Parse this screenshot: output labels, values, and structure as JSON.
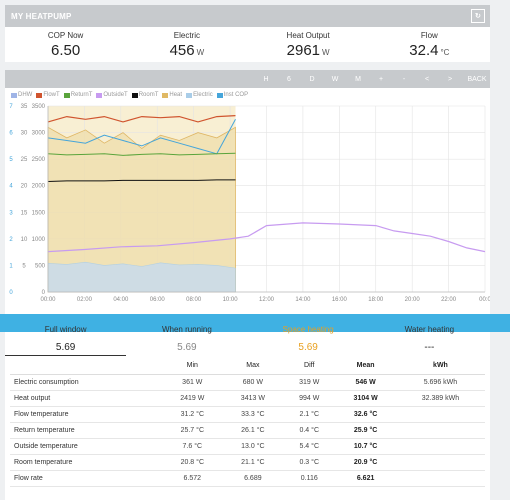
{
  "header": {
    "title": "MY HEATPUMP",
    "refresh_icon": "refresh-icon"
  },
  "stats": [
    {
      "label": "COP Now",
      "value": "6.50",
      "unit": ""
    },
    {
      "label": "Electric",
      "value": "456",
      "unit": "W"
    },
    {
      "label": "Heat Output",
      "value": "2961",
      "unit": "W"
    },
    {
      "label": "Flow",
      "value": "32.4",
      "unit": "°C"
    }
  ],
  "toolbar": [
    "H",
    "6",
    "D",
    "W",
    "M",
    "+",
    "-",
    "<",
    ">",
    "BACK"
  ],
  "legend": [
    {
      "name": "DHW",
      "color": "#9fb4e6"
    },
    {
      "name": "FlowT",
      "color": "#d0542e"
    },
    {
      "name": "ReturnT",
      "color": "#5aa43c"
    },
    {
      "name": "OutsideT",
      "color": "#c79bf0"
    },
    {
      "name": "RoomT",
      "color": "#111111"
    },
    {
      "name": "Heat",
      "color": "#e0b964"
    },
    {
      "name": "Electric",
      "color": "#a9cde8"
    },
    {
      "name": "Inst COP",
      "color": "#45a5da"
    }
  ],
  "chart_data": {
    "type": "line",
    "x_ticks": [
      "00:00",
      "02:00",
      "04:00",
      "06:00",
      "08:00",
      "10:00",
      "12:00",
      "14:00",
      "16:00",
      "18:00",
      "20:00",
      "22:00",
      "00:0"
    ],
    "y_left_ticks": [
      "0",
      "500",
      "1000",
      "1500",
      "2000",
      "2500",
      "3000",
      "3500"
    ],
    "y_cop_ticks": [
      "0",
      "1",
      "2",
      "3",
      "4",
      "5",
      "6",
      "7"
    ],
    "y_temp_ticks": [
      "5",
      "10",
      "15",
      "20",
      "25",
      "30",
      "35"
    ],
    "series": [
      {
        "name": "FlowT",
        "values": [
          32,
          33,
          32.5,
          33,
          32,
          33,
          32.8,
          33,
          32,
          33,
          33.2
        ]
      },
      {
        "name": "ReturnT",
        "values": [
          26,
          25.8,
          25.9,
          26,
          25.7,
          25.9,
          26,
          25.8,
          25.9,
          26,
          26.1
        ]
      },
      {
        "name": "RoomT",
        "values": [
          20.8,
          20.9,
          20.9,
          20.9,
          21,
          21,
          21,
          21,
          21,
          21.1,
          21.1
        ]
      },
      {
        "name": "Heat",
        "values": [
          3100,
          2900,
          3050,
          2800,
          3000,
          2700,
          2950,
          2850,
          3000,
          2900,
          3100
        ]
      },
      {
        "name": "Electric",
        "values": [
          540,
          520,
          560,
          500,
          530,
          480,
          550,
          510,
          520,
          500,
          450
        ]
      },
      {
        "name": "Inst COP",
        "values": [
          5.8,
          5.7,
          5.6,
          5.9,
          5.7,
          5.5,
          5.8,
          5.6,
          5.4,
          5.2,
          6.5
        ]
      },
      {
        "name": "OutsideT",
        "x": [
          0,
          2,
          4,
          6,
          8,
          10,
          11,
          12,
          14,
          16,
          18,
          19,
          20,
          21,
          22,
          23,
          24
        ],
        "values": [
          7.6,
          8,
          8.5,
          8.7,
          9.3,
          10,
          10.5,
          12.5,
          13,
          12.8,
          12.5,
          11.5,
          11,
          10.5,
          9.5,
          8.3,
          7.6
        ]
      }
    ]
  },
  "table": {
    "tabs": [
      {
        "label": "Full window",
        "value": "5.69",
        "color": "#222222"
      },
      {
        "label": "When running",
        "value": "5.69",
        "color": "#888888"
      },
      {
        "label": "Space heating",
        "value": "5.69",
        "color": "#e8a020"
      },
      {
        "label": "Water heating",
        "value": "---",
        "color": "#222222"
      }
    ],
    "headers": [
      "",
      "Min",
      "Max",
      "Diff",
      "Mean",
      "kWh"
    ],
    "rows": [
      [
        "Electric consumption",
        "361 W",
        "680 W",
        "319 W",
        "546 W",
        "5.696 kWh"
      ],
      [
        "Heat output",
        "2419 W",
        "3413 W",
        "994 W",
        "3104 W",
        "32.389 kWh"
      ],
      [
        "Flow temperature",
        "31.2 °C",
        "33.3 °C",
        "2.1 °C",
        "32.6 °C",
        ""
      ],
      [
        "Return temperature",
        "25.7 °C",
        "26.1 °C",
        "0.4 °C",
        "25.9 °C",
        ""
      ],
      [
        "Outside temperature",
        "7.6 °C",
        "13.0 °C",
        "5.4 °C",
        "10.7 °C",
        ""
      ],
      [
        "Room temperature",
        "20.8 °C",
        "21.1 °C",
        "0.3 °C",
        "20.9 °C",
        ""
      ],
      [
        "Flow rate",
        "6.572",
        "6.689",
        "0.116",
        "6.621",
        ""
      ]
    ]
  }
}
